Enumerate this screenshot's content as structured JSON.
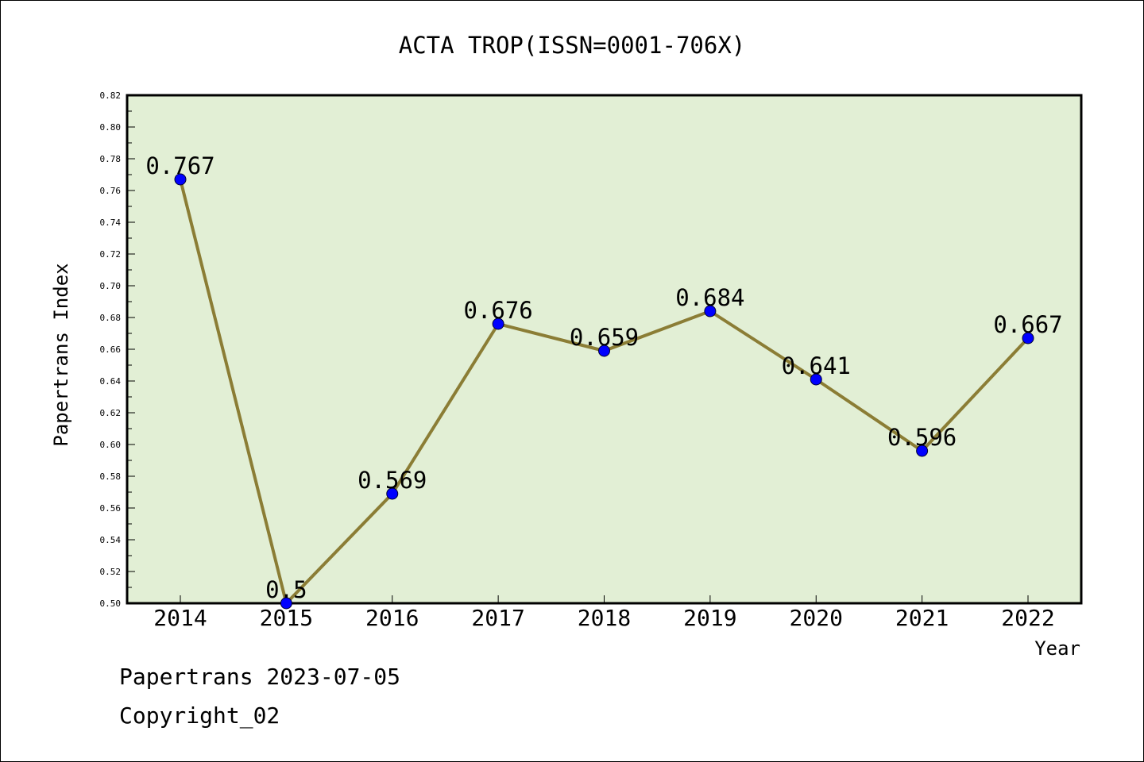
{
  "chart_data": {
    "type": "line",
    "title": "ACTA TROP(ISSN=0001-706X)",
    "xlabel": "Year",
    "ylabel": "Papertrans Index",
    "x": [
      "2014",
      "2015",
      "2016",
      "2017",
      "2018",
      "2019",
      "2020",
      "2021",
      "2022"
    ],
    "series": [
      {
        "values": [
          0.767,
          0.5,
          0.569,
          0.676,
          0.659,
          0.684,
          0.641,
          0.596,
          0.667
        ],
        "labels": [
          "0.767",
          "0.5",
          "0.569",
          "0.676",
          "0.659",
          "0.684",
          "0.641",
          "0.596",
          "0.667"
        ]
      }
    ],
    "ylim": [
      0.5,
      0.82
    ],
    "yticks": [
      "0.50",
      "0.52",
      "0.54",
      "0.56",
      "0.58",
      "0.60",
      "0.62",
      "0.64",
      "0.66",
      "0.68",
      "0.70",
      "0.72",
      "0.74",
      "0.76",
      "0.78",
      "0.80",
      "0.82"
    ],
    "grid": false,
    "legend": "none",
    "colors": {
      "plot_background": "#e2efd5",
      "line": "#8b7d35",
      "marker": "#0000ff"
    }
  },
  "footer": {
    "date_text": "Papertrans 2023-07-05",
    "copyright_text": "Copyright_02"
  }
}
